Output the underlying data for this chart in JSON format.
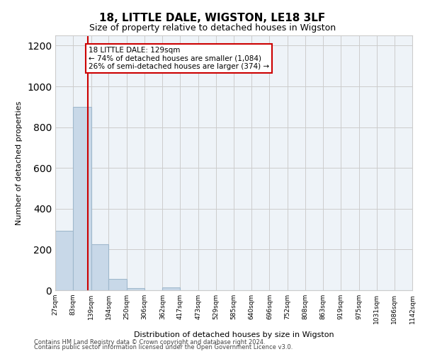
{
  "title_line1": "18, LITTLE DALE, WIGSTON, LE18 3LF",
  "title_line2": "Size of property relative to detached houses in Wigston",
  "xlabel": "Distribution of detached houses by size in Wigston",
  "ylabel": "Number of detached properties",
  "footnote1": "Contains HM Land Registry data © Crown copyright and database right 2024.",
  "footnote2": "Contains public sector information licensed under the Open Government Licence v3.0.",
  "bar_edges": [
    27,
    83,
    139,
    194,
    250,
    306,
    362,
    417,
    473,
    529,
    585,
    640,
    696,
    752,
    808,
    863,
    919,
    975,
    1031,
    1086,
    1142
  ],
  "bar_heights": [
    290,
    900,
    225,
    55,
    12,
    0,
    15,
    0,
    0,
    0,
    0,
    0,
    0,
    0,
    0,
    0,
    0,
    0,
    0,
    0
  ],
  "bar_color": "#c8d8e8",
  "bar_edge_color": "#a0b8cc",
  "property_line_x": 129,
  "property_line_color": "#cc0000",
  "annotation_text": "18 LITTLE DALE: 129sqm\n← 74% of detached houses are smaller (1,084)\n26% of semi-detached houses are larger (374) →",
  "annotation_box_color": "#cc0000",
  "ylim": [
    0,
    1250
  ],
  "yticks": [
    0,
    200,
    400,
    600,
    800,
    1000,
    1200
  ],
  "tick_labels": [
    "27sqm",
    "83sqm",
    "139sqm",
    "194sqm",
    "250sqm",
    "306sqm",
    "362sqm",
    "417sqm",
    "473sqm",
    "529sqm",
    "585sqm",
    "640sqm",
    "696sqm",
    "752sqm",
    "808sqm",
    "863sqm",
    "919sqm",
    "975sqm",
    "1031sqm",
    "1086sqm",
    "1142sqm"
  ],
  "grid_color": "#cccccc",
  "bg_color": "#eef3f8"
}
